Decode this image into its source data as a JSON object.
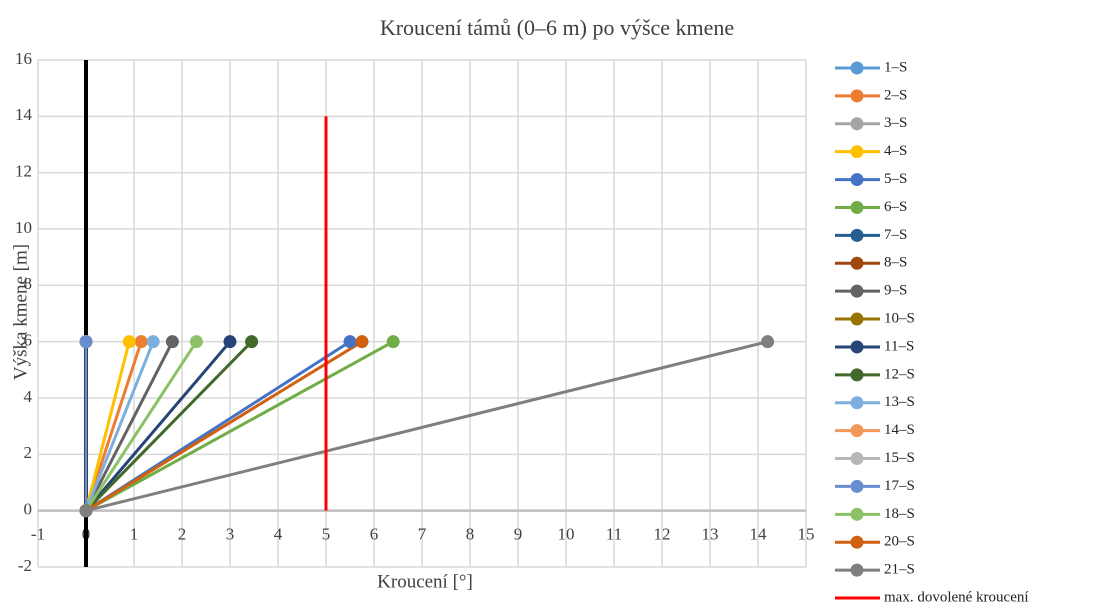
{
  "chart_data": {
    "type": "line",
    "title": "Kroucení támů (0–6 m) po výšce kmene",
    "x_label": "Kroucení [°]",
    "y_label": "Výška kmene [m]",
    "xlim": [
      -1,
      15
    ],
    "xticks": [
      -1,
      0,
      1,
      2,
      3,
      4,
      5,
      6,
      7,
      8,
      9,
      10,
      11,
      12,
      13,
      14,
      15
    ],
    "ylim": [
      -2,
      16
    ],
    "yticks": [
      -2,
      0,
      2,
      4,
      6,
      8,
      10,
      12,
      14,
      16
    ],
    "grid": true,
    "legend": "right",
    "series": [
      {
        "name": "1–S",
        "color": "#5B9BD5",
        "x": [
          0,
          0
        ],
        "y": [
          0,
          6
        ],
        "marker": true
      },
      {
        "name": "2–S",
        "color": "#ED7D31",
        "x": [
          0,
          1.15
        ],
        "y": [
          0,
          6
        ],
        "marker": true
      },
      {
        "name": "3–S",
        "color": "#A5A5A5",
        "x": [
          0,
          0
        ],
        "y": [
          0,
          6
        ],
        "marker": true
      },
      {
        "name": "4–S",
        "color": "#FFC000",
        "x": [
          0,
          0.9
        ],
        "y": [
          0,
          6
        ],
        "marker": true
      },
      {
        "name": "5–S",
        "color": "#4472C4",
        "x": [
          0,
          5.5
        ],
        "y": [
          0,
          6
        ],
        "marker": true
      },
      {
        "name": "6–S",
        "color": "#70AD47",
        "x": [
          0,
          6.4
        ],
        "y": [
          0,
          6
        ],
        "marker": true
      },
      {
        "name": "7–S",
        "color": "#255E91",
        "x": [
          0,
          0
        ],
        "y": [
          0,
          6
        ],
        "marker": true
      },
      {
        "name": "8–S",
        "color": "#9E480E",
        "x": [
          0,
          0
        ],
        "y": [
          0,
          6
        ],
        "marker": true
      },
      {
        "name": "9–S",
        "color": "#636363",
        "x": [
          0,
          1.8
        ],
        "y": [
          0,
          6
        ],
        "marker": true
      },
      {
        "name": "10–S",
        "color": "#997300",
        "x": [
          0,
          0
        ],
        "y": [
          0,
          6
        ],
        "marker": true
      },
      {
        "name": "11–S",
        "color": "#264478",
        "x": [
          0,
          3
        ],
        "y": [
          0,
          6
        ],
        "marker": true
      },
      {
        "name": "12–S",
        "color": "#43682B",
        "x": [
          0,
          3.45
        ],
        "y": [
          0,
          6
        ],
        "marker": true
      },
      {
        "name": "13–S",
        "color": "#7CAFDD",
        "x": [
          0,
          1.4
        ],
        "y": [
          0,
          6
        ],
        "marker": true
      },
      {
        "name": "14–S",
        "color": "#F1975A",
        "x": [
          0,
          0
        ],
        "y": [
          0,
          6
        ],
        "marker": true
      },
      {
        "name": "15–S",
        "color": "#B7B7B7",
        "x": [
          0,
          0
        ],
        "y": [
          0,
          6
        ],
        "marker": true
      },
      {
        "name": "17–S",
        "color": "#698ED0",
        "x": [
          0,
          0
        ],
        "y": [
          0,
          6
        ],
        "marker": true
      },
      {
        "name": "18–S",
        "color": "#8CC168",
        "x": [
          0,
          2.3
        ],
        "y": [
          0,
          6
        ],
        "marker": true
      },
      {
        "name": "20–S",
        "color": "#D26012",
        "x": [
          0,
          5.75
        ],
        "y": [
          0,
          6
        ],
        "marker": true
      },
      {
        "name": "21–S",
        "color": "#7F7F7F",
        "x": [
          0,
          14.2
        ],
        "y": [
          0,
          6
        ],
        "marker": true
      },
      {
        "name": "max. dovolené kroucení",
        "color": "#FF0000",
        "x": [
          5,
          5
        ],
        "y": [
          0,
          14
        ],
        "marker": false
      }
    ]
  }
}
